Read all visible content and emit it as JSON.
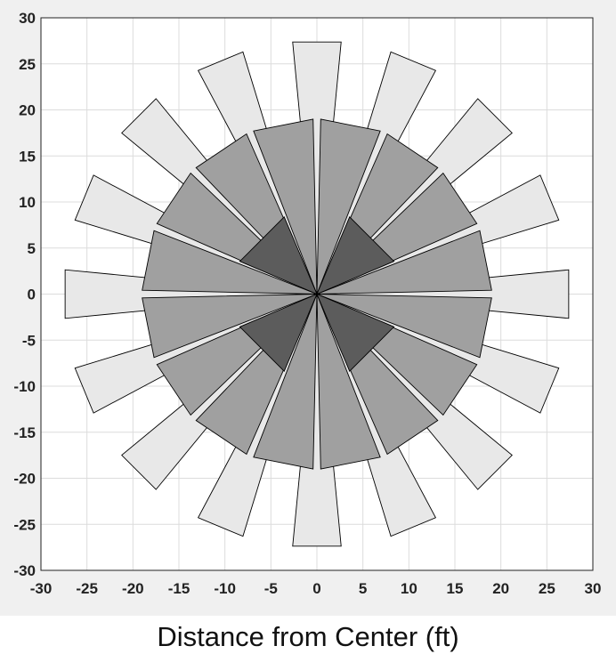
{
  "chart_data": {
    "type": "polar-area",
    "title": "",
    "xlabel": "Distance from Center (ft)",
    "ylabel": "",
    "xlim": [
      -30,
      30
    ],
    "ylim": [
      -30,
      30
    ],
    "xticks": [
      "-30",
      "-25",
      "-20",
      "-15",
      "-10",
      "-5",
      "0",
      "5",
      "10",
      "15",
      "20",
      "25",
      "30"
    ],
    "yticks": [
      "30",
      "25",
      "20",
      "15",
      "10",
      "5",
      "0",
      "-5",
      "-10",
      "-15",
      "-20",
      "-25",
      "-30"
    ],
    "grid": true,
    "rings": [
      {
        "radius_ft": 27.5,
        "color": "#e8e8e8",
        "center_angles_deg": [
          0,
          22.5,
          45,
          67.5,
          90,
          112.5,
          135,
          157.5,
          180,
          202.5,
          225,
          247.5,
          270,
          292.5,
          315,
          337.5
        ],
        "half_width_deg": 5.5
      },
      {
        "radius_ft": 19,
        "color": "#a0a0a0",
        "center_angles_deg": [
          11.25,
          33.75,
          56.25,
          78.75,
          101.25,
          123.75,
          146.25,
          168.75,
          191.25,
          213.75,
          236.25,
          258.75,
          281.25,
          303.75,
          326.25,
          348.75
        ],
        "half_width_deg": 10
      },
      {
        "radius_ft": 9.1,
        "color": "#5c5c5c",
        "center_angles_deg": [
          45,
          135,
          225,
          315
        ],
        "half_width_deg": 22
      }
    ]
  },
  "colors": {
    "plot_background": "#ffffff",
    "frame_background": "#f0f0f0",
    "grid": "#dcdcdc",
    "edge": "#000000"
  }
}
